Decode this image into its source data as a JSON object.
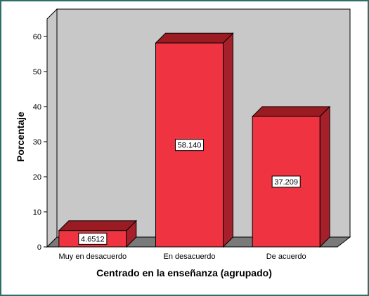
{
  "chart_data": {
    "type": "bar",
    "title": "",
    "xlabel": "Centrado en la enseñanza (agrupado)",
    "ylabel": "Porcentaje",
    "ylim": [
      0,
      65
    ],
    "yticks": [
      0,
      10,
      20,
      30,
      40,
      50,
      60
    ],
    "grid": false,
    "style": "3d",
    "categories": [
      "Muy en desacuerdo",
      "En desacuerdo",
      "De acuerdo"
    ],
    "values": [
      4.6512,
      58.14,
      37.209
    ],
    "data_labels": [
      "4.6512",
      "58.140",
      "37.209"
    ],
    "colors": {
      "bar_front": "#ef3340",
      "bar_top": "#9b1b22",
      "bar_side": "#a5202a",
      "plot_back": "#c8c8c8",
      "plot_floor": "#7a7a7a",
      "frame": "#2f6f6a"
    }
  }
}
